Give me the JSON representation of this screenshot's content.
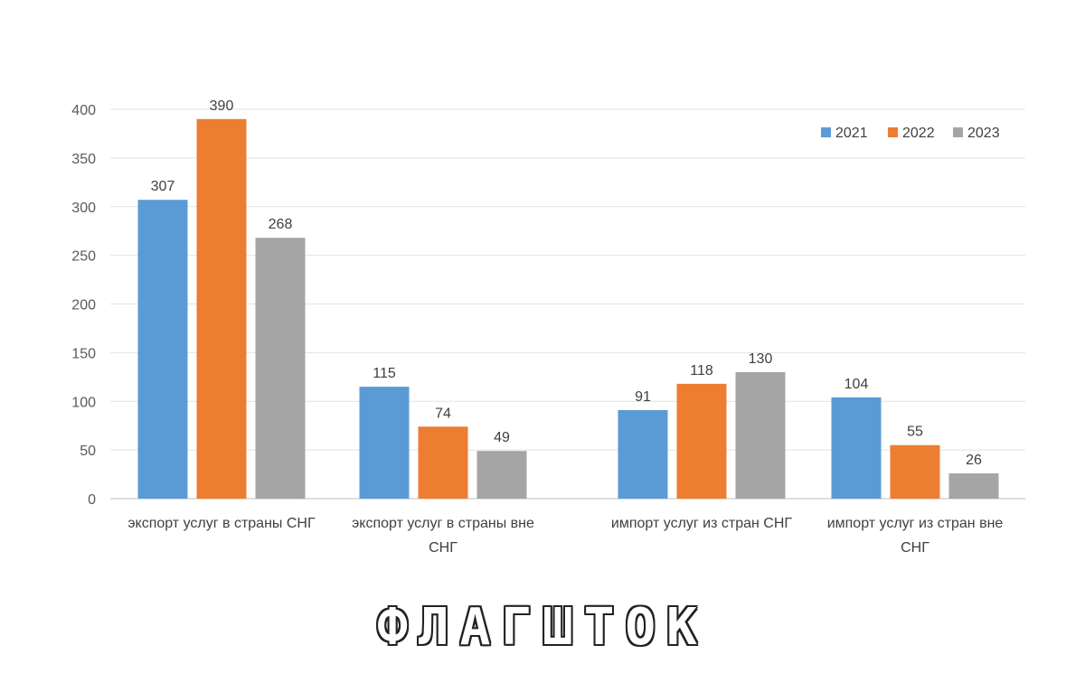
{
  "chart_data": {
    "type": "bar",
    "title": "",
    "xlabel": "",
    "ylabel": "",
    "ylim": [
      0,
      400
    ],
    "yticks": [
      0,
      50,
      100,
      150,
      200,
      250,
      300,
      350,
      400
    ],
    "grid": true,
    "legend_position": "top-right",
    "categories": [
      [
        "экспорт услуг в страны СНГ"
      ],
      [
        "экспорт услуг в страны вне",
        "СНГ"
      ],
      [
        "импорт услуг из стран СНГ"
      ],
      [
        "импорт услуг из стран вне",
        "СНГ"
      ]
    ],
    "series": [
      {
        "name": "2021",
        "color": "#5b9bd5",
        "values": [
          307,
          115,
          91,
          104
        ]
      },
      {
        "name": "2022",
        "color": "#ed7d31",
        "values": [
          390,
          74,
          118,
          55
        ]
      },
      {
        "name": "2023",
        "color": "#a5a5a5",
        "values": [
          268,
          49,
          130,
          26
        ]
      }
    ]
  },
  "watermark": {
    "text": "ФЛАГШТОК"
  }
}
